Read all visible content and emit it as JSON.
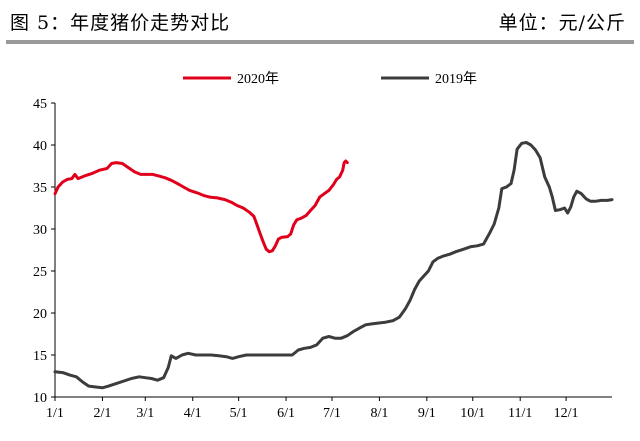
{
  "header": {
    "title": "图 5：年度猪价走势对比",
    "unit": "单位：元/公斤"
  },
  "chart_data": {
    "type": "line",
    "title": "",
    "xlabel": "",
    "ylabel": "",
    "x_ticks": [
      "1/1",
      "2/1",
      "3/1",
      "4/1",
      "5/1",
      "6/1",
      "7/1",
      "8/1",
      "9/1",
      "10/1",
      "11/1",
      "12/1"
    ],
    "y_ticks": [
      10,
      15,
      20,
      25,
      30,
      35,
      40,
      45
    ],
    "ylim": [
      10,
      45
    ],
    "xlim_days": [
      1,
      365
    ],
    "grid": false,
    "legend_position": "top",
    "series": [
      {
        "name": "2020年",
        "color": "#e0001b",
        "points": [
          [
            "1/1",
            34.2
          ],
          [
            "1/3",
            35.0
          ],
          [
            "1/6",
            35.6
          ],
          [
            "1/9",
            35.9
          ],
          [
            "1/12",
            36.0
          ],
          [
            "1/14",
            36.5
          ],
          [
            "1/16",
            36.0
          ],
          [
            "1/20",
            36.3
          ],
          [
            "1/25",
            36.6
          ],
          [
            "1/30",
            37.0
          ],
          [
            "2/4",
            37.2
          ],
          [
            "2/7",
            37.8
          ],
          [
            "2/10",
            37.9
          ],
          [
            "2/14",
            37.8
          ],
          [
            "2/18",
            37.3
          ],
          [
            "2/22",
            36.8
          ],
          [
            "2/26",
            36.5
          ],
          [
            "3/2",
            36.5
          ],
          [
            "3/6",
            36.5
          ],
          [
            "3/10",
            36.3
          ],
          [
            "3/14",
            36.1
          ],
          [
            "3/18",
            35.8
          ],
          [
            "3/22",
            35.4
          ],
          [
            "3/26",
            35.0
          ],
          [
            "3/30",
            34.6
          ],
          [
            "4/4",
            34.3
          ],
          [
            "4/8",
            34.0
          ],
          [
            "4/12",
            33.8
          ],
          [
            "4/17",
            33.7
          ],
          [
            "4/22",
            33.5
          ],
          [
            "4/26",
            33.2
          ],
          [
            "4/30",
            32.8
          ],
          [
            "5/4",
            32.5
          ],
          [
            "5/8",
            32.0
          ],
          [
            "5/11",
            31.5
          ],
          [
            "5/13",
            30.5
          ],
          [
            "5/15",
            29.5
          ],
          [
            "5/17",
            28.5
          ],
          [
            "5/19",
            27.6
          ],
          [
            "5/21",
            27.3
          ],
          [
            "5/23",
            27.4
          ],
          [
            "5/25",
            28.0
          ],
          [
            "5/27",
            28.8
          ],
          [
            "5/29",
            29.0
          ],
          [
            "6/2",
            29.1
          ],
          [
            "6/4",
            29.4
          ],
          [
            "6/6",
            30.5
          ],
          [
            "6/8",
            31.1
          ],
          [
            "6/11",
            31.3
          ],
          [
            "6/14",
            31.6
          ],
          [
            "6/17",
            32.2
          ],
          [
            "6/20",
            32.8
          ],
          [
            "6/23",
            33.8
          ],
          [
            "6/26",
            34.2
          ],
          [
            "6/29",
            34.6
          ],
          [
            "7/2",
            35.3
          ],
          [
            "7/4",
            35.9
          ],
          [
            "7/6",
            36.2
          ],
          [
            "7/8",
            37.0
          ],
          [
            "7/9",
            37.9
          ],
          [
            "7/10",
            38.1
          ],
          [
            "7/11",
            37.9
          ]
        ]
      },
      {
        "name": "2019年",
        "color": "#3c3c3c",
        "points": [
          [
            "1/1",
            13.0
          ],
          [
            "1/6",
            12.9
          ],
          [
            "1/11",
            12.6
          ],
          [
            "1/15",
            12.4
          ],
          [
            "1/19",
            11.8
          ],
          [
            "1/23",
            11.3
          ],
          [
            "1/27",
            11.2
          ],
          [
            "2/1",
            11.1
          ],
          [
            "2/5",
            11.3
          ],
          [
            "2/10",
            11.6
          ],
          [
            "2/15",
            11.9
          ],
          [
            "2/20",
            12.2
          ],
          [
            "2/25",
            12.4
          ],
          [
            "3/1",
            12.3
          ],
          [
            "3/5",
            12.2
          ],
          [
            "3/9",
            12.0
          ],
          [
            "3/13",
            12.3
          ],
          [
            "3/16",
            13.5
          ],
          [
            "3/18",
            14.9
          ],
          [
            "3/21",
            14.6
          ],
          [
            "3/25",
            15.0
          ],
          [
            "3/29",
            15.2
          ],
          [
            "4/3",
            15.0
          ],
          [
            "4/8",
            15.0
          ],
          [
            "4/13",
            15.0
          ],
          [
            "4/18",
            14.9
          ],
          [
            "4/23",
            14.8
          ],
          [
            "4/27",
            14.6
          ],
          [
            "5/1",
            14.8
          ],
          [
            "5/6",
            15.0
          ],
          [
            "5/11",
            15.0
          ],
          [
            "5/16",
            15.0
          ],
          [
            "5/21",
            15.0
          ],
          [
            "5/26",
            15.0
          ],
          [
            "5/31",
            15.0
          ],
          [
            "6/5",
            15.0
          ],
          [
            "6/9",
            15.6
          ],
          [
            "6/13",
            15.8
          ],
          [
            "6/17",
            15.9
          ],
          [
            "6/21",
            16.2
          ],
          [
            "6/25",
            17.0
          ],
          [
            "6/29",
            17.2
          ],
          [
            "7/3",
            17.0
          ],
          [
            "7/7",
            17.0
          ],
          [
            "7/11",
            17.3
          ],
          [
            "7/15",
            17.8
          ],
          [
            "7/19",
            18.2
          ],
          [
            "7/23",
            18.6
          ],
          [
            "7/27",
            18.7
          ],
          [
            "7/31",
            18.8
          ],
          [
            "8/5",
            18.9
          ],
          [
            "8/10",
            19.1
          ],
          [
            "8/14",
            19.5
          ],
          [
            "8/18",
            20.5
          ],
          [
            "8/21",
            21.5
          ],
          [
            "8/24",
            22.8
          ],
          [
            "8/27",
            23.8
          ],
          [
            "8/30",
            24.4
          ],
          [
            "9/2",
            25.0
          ],
          [
            "9/5",
            26.1
          ],
          [
            "9/8",
            26.5
          ],
          [
            "9/12",
            26.8
          ],
          [
            "9/16",
            27.0
          ],
          [
            "9/20",
            27.3
          ],
          [
            "9/25",
            27.6
          ],
          [
            "9/30",
            27.9
          ],
          [
            "10/4",
            28.0
          ],
          [
            "10/8",
            28.2
          ],
          [
            "10/12",
            29.5
          ],
          [
            "10/15",
            30.6
          ],
          [
            "10/18",
            32.5
          ],
          [
            "10/20",
            34.8
          ],
          [
            "10/23",
            35.0
          ],
          [
            "10/26",
            35.4
          ],
          [
            "10/28",
            37.0
          ],
          [
            "10/30",
            39.5
          ],
          [
            "11/2",
            40.2
          ],
          [
            "11/5",
            40.3
          ],
          [
            "11/8",
            40.0
          ],
          [
            "11/11",
            39.4
          ],
          [
            "11/14",
            38.5
          ],
          [
            "11/17",
            36.2
          ],
          [
            "11/20",
            35.0
          ],
          [
            "11/22",
            33.8
          ],
          [
            "11/24",
            32.2
          ],
          [
            "11/27",
            32.3
          ],
          [
            "11/30",
            32.5
          ],
          [
            "12/2",
            31.9
          ],
          [
            "12/4",
            32.6
          ],
          [
            "12/6",
            33.8
          ],
          [
            "12/8",
            34.5
          ],
          [
            "12/11",
            34.2
          ],
          [
            "12/14",
            33.6
          ],
          [
            "12/17",
            33.3
          ],
          [
            "12/20",
            33.3
          ],
          [
            "12/24",
            33.4
          ],
          [
            "12/28",
            33.4
          ],
          [
            "12/31",
            33.5
          ]
        ]
      }
    ]
  }
}
